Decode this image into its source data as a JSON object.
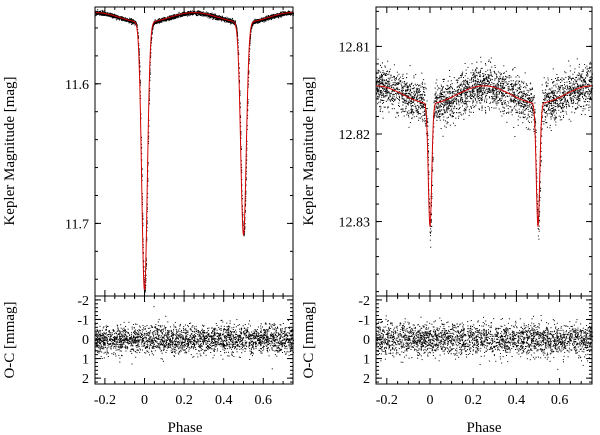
{
  "chart_data": [
    {
      "type": "scatter",
      "name": "left-light-curve",
      "ylabel": "Kepler Magnitude [mag]",
      "y_inverted": true,
      "xlim": [
        -0.25,
        0.75
      ],
      "ylim": [
        11.545,
        11.752
      ],
      "yticks": [
        11.6,
        11.7
      ],
      "ytick_labels": [
        "11.6",
        "11.7"
      ],
      "model": {
        "color": "#d40000",
        "baseline_max": 11.549,
        "baseline_min": 11.556,
        "primary": {
          "phase": 0.0,
          "depth_mag": 11.748,
          "width": 0.014
        },
        "secondary": {
          "phase": 0.5,
          "depth_mag": 11.708,
          "width": 0.014
        }
      },
      "data_color": "#000000",
      "scatter_mag": 0.0007
    },
    {
      "type": "scatter",
      "name": "left-residuals",
      "ylabel": "O-C [mmag]",
      "xlabel": "Phase",
      "y_inverted": true,
      "xlim": [
        -0.25,
        0.75
      ],
      "ylim": [
        -2.2,
        2.3
      ],
      "yticks": [
        -2,
        -1,
        0,
        1,
        2
      ],
      "ytick_labels": [
        "-2",
        "-1",
        "0",
        "1",
        "2"
      ],
      "xticks": [
        -0.2,
        0,
        0.2,
        0.4,
        0.6
      ],
      "xtick_labels": [
        "-0.2",
        "0",
        "0.2",
        "0.4",
        "0.6"
      ],
      "scatter_mmag": 0.35
    },
    {
      "type": "scatter",
      "name": "right-light-curve",
      "ylabel": "Kepler Magnitude [mag]",
      "y_inverted": true,
      "xlim": [
        -0.25,
        0.75
      ],
      "ylim": [
        12.8055,
        12.8385
      ],
      "yticks": [
        12.81,
        12.82,
        12.83
      ],
      "ytick_labels": [
        "12.81",
        "12.82",
        "12.83"
      ],
      "model": {
        "color": "#d40000",
        "baseline_max": 12.8145,
        "baseline_min": 12.8165,
        "primary": {
          "phase": 0.0,
          "depth_mag": 12.8305,
          "width": 0.008
        },
        "secondary": {
          "phase": 0.5,
          "depth_mag": 12.8305,
          "width": 0.008
        }
      },
      "data_color": "#000000",
      "scatter_mag": 0.0012
    },
    {
      "type": "scatter",
      "name": "right-residuals",
      "ylabel": "O-C [mmag]",
      "xlabel": "Phase",
      "y_inverted": true,
      "xlim": [
        -0.25,
        0.75
      ],
      "ylim": [
        -2.2,
        2.3
      ],
      "yticks": [
        -2,
        -1,
        0,
        1,
        2
      ],
      "ytick_labels": [
        "-2",
        "-1",
        "0",
        "1",
        "2"
      ],
      "xticks": [
        -0.2,
        0,
        0.2,
        0.4,
        0.6
      ],
      "xtick_labels": [
        "-0.2",
        "0",
        "0.2",
        "0.4",
        "0.6"
      ],
      "scatter_mmag": 0.4
    }
  ]
}
